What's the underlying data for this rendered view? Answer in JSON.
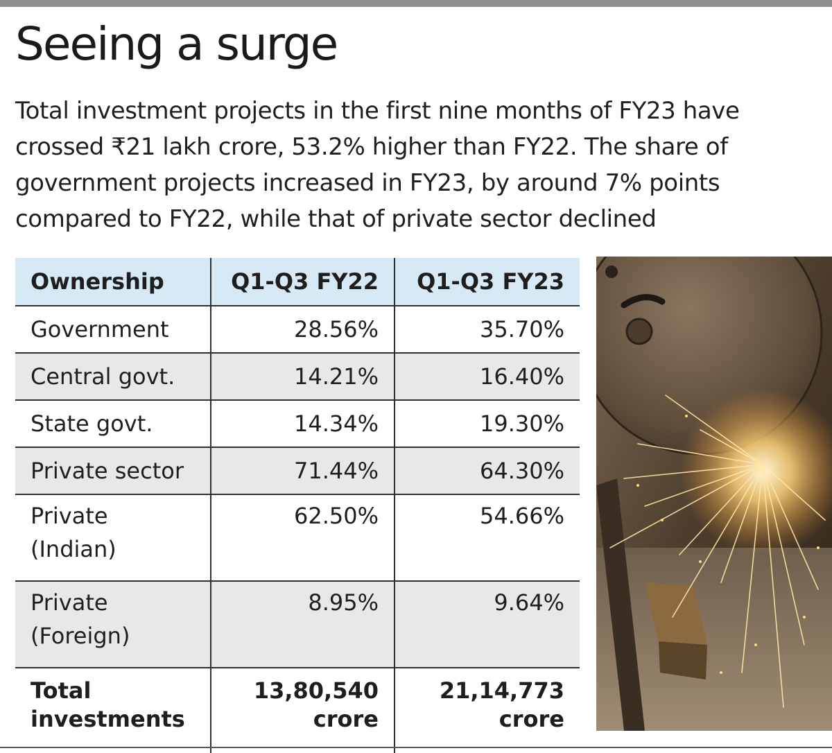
{
  "headline": "Seeing a surge",
  "subhead": "Total investment projects in the first nine months of FY23 have crossed ₹21 lakh crore, 53.2% higher than FY22. The share of government projects increased in FY23, by around 7% points compared to FY22, while that of private sector declined",
  "table": {
    "headers": [
      "Ownership",
      "Q1-Q3 FY22",
      "Q1-Q3 FY23"
    ],
    "rows": [
      {
        "label": "Government",
        "fy22": "28.56%",
        "fy23": "35.70%"
      },
      {
        "label": "Central govt.",
        "fy22": "14.21%",
        "fy23": "16.40%"
      },
      {
        "label": "State govt.",
        "fy22": "14.34%",
        "fy23": "19.30%"
      },
      {
        "label": "Private sector",
        "fy22": "71.44%",
        "fy23": "64.30%"
      },
      {
        "label": "Private (Indian)",
        "fy22": "62.50%",
        "fy23": "54.66%"
      },
      {
        "label": "Private (Foreign)",
        "fy22": "8.95%",
        "fy23": "9.64%"
      }
    ],
    "total": {
      "label": "Total investments",
      "fy22": "13,80,540 crore",
      "fy23": "21,14,773 crore"
    }
  },
  "colors": {
    "header_bg": "#d6e9f5",
    "row_shade": "#e8e8e8",
    "rule": "#2f2f2f",
    "top_bar": "#8f8f8f"
  }
}
